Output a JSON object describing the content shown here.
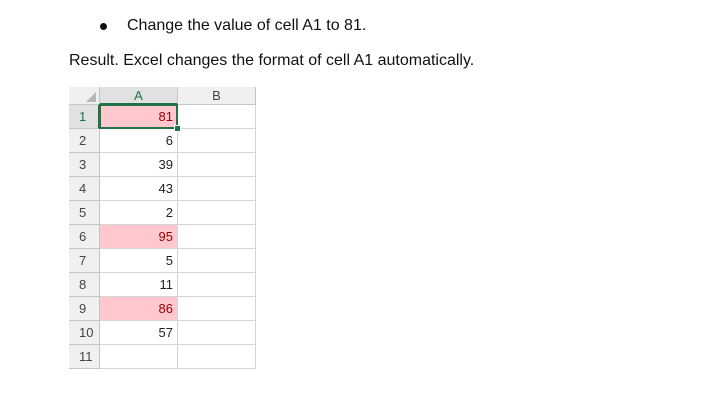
{
  "bullet": "Change the value of cell A1 to 81.",
  "result": "Result. Excel changes the format of cell A1 automatically.",
  "sheet": {
    "columns": [
      "A",
      "B"
    ],
    "active_cell": "A1",
    "rows": [
      {
        "header": "1",
        "A": 81,
        "highlight": true
      },
      {
        "header": "2",
        "A": 6,
        "highlight": false
      },
      {
        "header": "3",
        "A": 39,
        "highlight": false
      },
      {
        "header": "4",
        "A": 43,
        "highlight": false
      },
      {
        "header": "5",
        "A": 2,
        "highlight": false
      },
      {
        "header": "6",
        "A": 95,
        "highlight": true
      },
      {
        "header": "7",
        "A": 5,
        "highlight": false
      },
      {
        "header": "8",
        "A": 11,
        "highlight": false
      },
      {
        "header": "9",
        "A": 86,
        "highlight": true
      },
      {
        "header": "10",
        "A": 57,
        "highlight": false
      },
      {
        "header": "11",
        "A": null,
        "highlight": false
      }
    ]
  }
}
